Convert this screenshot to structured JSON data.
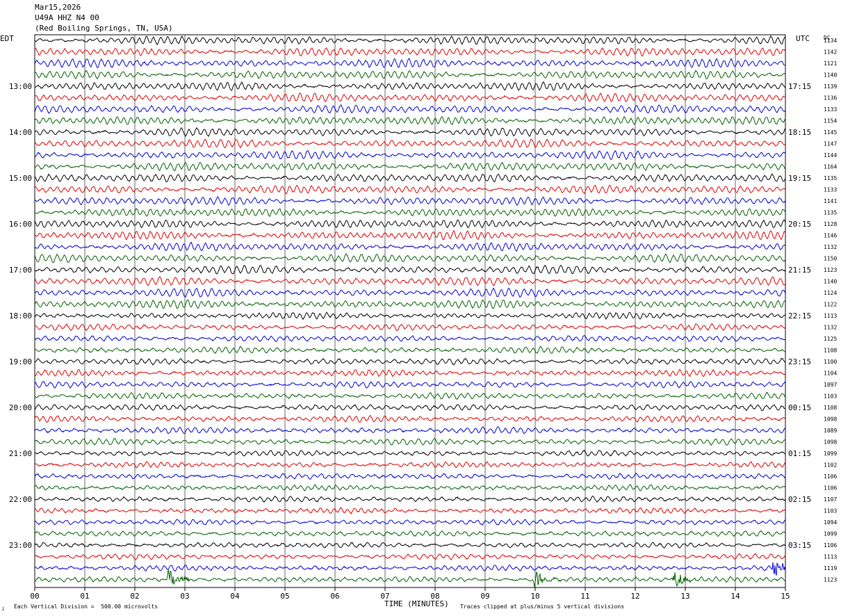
{
  "header": {
    "date": "Mar15,2026",
    "station": "U49A HHZ N4 00",
    "location": "(Red Boiling Springs, TN, USA)"
  },
  "left_tz_label": "EDT",
  "right_tz_label": "UTC",
  "dc_label": "DC",
  "footer": {
    "vertical_division": "Each Vertical Division =  500.00 microvolts",
    "clip_note": "Traces clipped at plus/minus 5 vertical divisions",
    "corner_mark": "ᴊ"
  },
  "colors": {
    "trace_cycle": [
      "#000000",
      "#e00000",
      "#0000d0",
      "#006000"
    ],
    "grid": "#000000"
  },
  "chart_data": {
    "type": "line",
    "title": "",
    "xlabel": "TIME (MINUTES)",
    "ylabel": "",
    "xlim": [
      0,
      15
    ],
    "x_ticks": [
      "00",
      "01",
      "02",
      "03",
      "04",
      "05",
      "06",
      "07",
      "08",
      "09",
      "10",
      "11",
      "12",
      "13",
      "14",
      "15"
    ],
    "rows_per_hour": 4,
    "minutes_per_row": 15,
    "left_hour_labels": [
      "13:00",
      "14:00",
      "15:00",
      "16:00",
      "17:00",
      "18:00",
      "19:00",
      "20:00",
      "21:00",
      "22:00",
      "23:00"
    ],
    "right_hour_labels": [
      "17:15",
      "18:15",
      "19:15",
      "20:15",
      "21:15",
      "22:15",
      "23:15",
      "00:15",
      "01:15",
      "02:15",
      "03:15"
    ],
    "dc_offsets": [
      1134,
      1142,
      1121,
      1140,
      1139,
      1136,
      1133,
      1154,
      1145,
      1147,
      1144,
      1164,
      1135,
      1133,
      1141,
      1135,
      1128,
      1146,
      1132,
      1150,
      1123,
      1140,
      1124,
      1122,
      1113,
      1132,
      1125,
      1108,
      1100,
      1104,
      1097,
      1103,
      1108,
      1098,
      1089,
      1098,
      1099,
      1102,
      1106,
      1106,
      1107,
      1103,
      1094,
      1099,
      1106,
      1113,
      1119,
      1123
    ],
    "event_bursts": [
      {
        "row": 47,
        "minute": 2.7,
        "color_index": 3
      },
      {
        "row": 47,
        "minute": 10.0,
        "color_index": 3
      },
      {
        "row": 47,
        "minute": 12.8,
        "color_index": 3
      },
      {
        "row": 46,
        "minute": 14.8,
        "color_index": 2
      }
    ]
  }
}
